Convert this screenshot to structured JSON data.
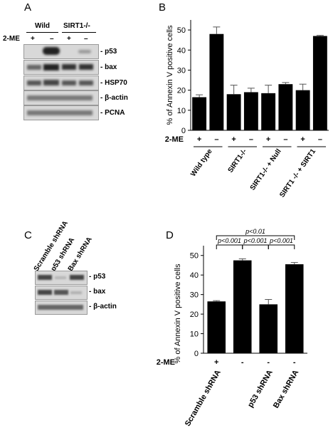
{
  "panels": {
    "A": {
      "letter": "A",
      "treatment_label": "2-ME",
      "group_labels": [
        "Wild",
        "SIRT1-/-"
      ],
      "lane_signs": [
        "+",
        "–",
        "+",
        "–"
      ],
      "blot_labels": [
        "- p53",
        "- bax",
        "- HSP70",
        "- β-actin",
        "- PCNA"
      ]
    },
    "B": {
      "letter": "B"
    },
    "C": {
      "letter": "C",
      "lane_labels": [
        "Scramble shRNA",
        "p53 shRNA",
        "Bax shRNA"
      ],
      "blot_labels": [
        "- p53",
        "- bax",
        "- β-actin"
      ]
    },
    "D": {
      "letter": "D"
    }
  },
  "chart_data": [
    {
      "panel": "B",
      "type": "bar",
      "ylabel": "% of  Annexin V positive cells",
      "ylim": [
        0,
        55
      ],
      "yticks": [
        0,
        10,
        20,
        30,
        40,
        50
      ],
      "treatment_label": "2-ME",
      "treatment_signs": [
        "+",
        "–",
        "+",
        "–",
        "+",
        "–",
        "+",
        "–"
      ],
      "groups": [
        "Wild type",
        "SIRT1-/-",
        "SIRT1-/- + Null",
        "SIRT1 -/- + SIRT1"
      ],
      "values": [
        16.5,
        48,
        18,
        19,
        18.5,
        23,
        20,
        47
      ],
      "errors": [
        1.2,
        3.5,
        4.5,
        2,
        4,
        0.8,
        3,
        0.3
      ],
      "bar_color": "#000000",
      "grid": false
    },
    {
      "panel": "D",
      "type": "bar",
      "ylabel": "% of Annexin V positive cells",
      "ylim": [
        0,
        55
      ],
      "yticks": [
        0,
        10,
        20,
        30,
        40,
        50
      ],
      "treatment_label": "2-ME",
      "treatment_signs": [
        "+",
        "-",
        "-",
        "-"
      ],
      "categories": [
        "Scramble shRNA",
        "",
        "p53 shRNA",
        "Bax shRNA"
      ],
      "values": [
        26.5,
        47.5,
        25,
        45.5
      ],
      "errors": [
        0.4,
        0.8,
        2.5,
        0.9
      ],
      "bar_color": "#000000",
      "grid": false,
      "significance": [
        {
          "from": 0,
          "to": 1,
          "label": "p<0.001",
          "level": 1
        },
        {
          "from": 1,
          "to": 2,
          "label": "p<0.001",
          "level": 1
        },
        {
          "from": 2,
          "to": 3,
          "label": "p<0.001",
          "level": 1
        },
        {
          "from": 0,
          "to": 3,
          "label": "p<0.01",
          "level": 2
        }
      ]
    }
  ]
}
